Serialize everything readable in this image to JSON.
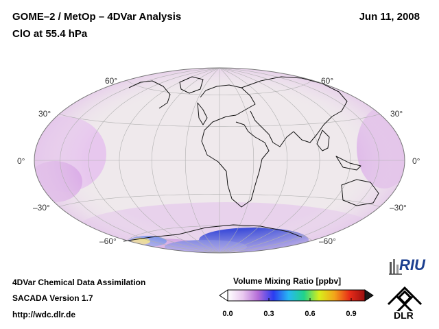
{
  "header": {
    "title_line1": "GOME–2 / MetOp – 4DVar Analysis",
    "title_line2": "ClO at 55.4 hPa",
    "date": "Jun 11, 2008"
  },
  "map": {
    "projection": "Hammer-Aitoff",
    "lat_labels": [
      "60°",
      "30°",
      "0°",
      "–30°",
      "–60°"
    ],
    "background_color": "#efe9ec",
    "enhancement_color": "#d9a6e6",
    "hotspot_color": "#2f45d9"
  },
  "colorbar": {
    "title": "Volume Mixing Ratio [ppbv]",
    "tick_labels": [
      "0.0",
      "0.3",
      "0.6",
      "0.9"
    ],
    "tick_values": [
      0.0,
      0.3,
      0.6,
      0.9
    ],
    "range": [
      0.0,
      1.0
    ],
    "colors": [
      "#ffffff",
      "#e9c8ef",
      "#b46cd8",
      "#2b3cf0",
      "#27b8f2",
      "#21d28a",
      "#d8ef1b",
      "#f3a51a",
      "#e82b18",
      "#9a1010"
    ]
  },
  "footer": {
    "line1": "4DVar Chemical Data Assimilation",
    "line2": "SACADA Version 1.7",
    "line3": "http://wdc.dlr.de"
  },
  "logos": {
    "riu": "RIU",
    "dlr": "DLR"
  }
}
